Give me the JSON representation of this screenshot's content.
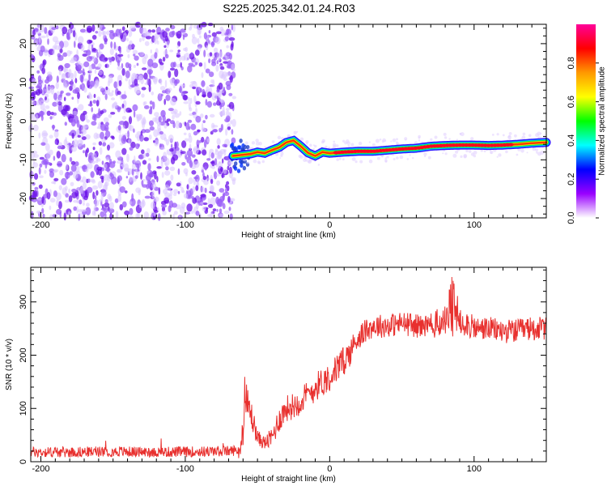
{
  "title": "S225.2025.342.01.24.R03",
  "colors": {
    "snr_line": "#e8302e",
    "spectrogram_scatter": "#7a2cf0",
    "frame": "#000000"
  },
  "chart_data": [
    {
      "type": "heatmap",
      "title": "S225.2025.342.01.24.R03",
      "xlabel": "Height of straight line (km)",
      "ylabel": "Frequency (Hz)",
      "xlim": [
        -207,
        150
      ],
      "ylim": [
        -25,
        25
      ],
      "xticks": [
        -200,
        -100,
        0,
        100
      ],
      "yticks": [
        -20,
        -10,
        0,
        10,
        20
      ],
      "colorbar": {
        "label": "Normalized spectral amplitude",
        "range": [
          0,
          1
        ],
        "ticks": [
          0.0,
          0.2,
          0.4,
          0.6,
          0.8
        ],
        "tick_labels": [
          "0.0",
          "0.2",
          "0.4",
          "0.6",
          "0.8"
        ],
        "colormap": [
          "#ffffff",
          "#9900ff",
          "#0000ff",
          "#00ffff",
          "#00ff00",
          "#ffff00",
          "#ff9900",
          "#ff0000",
          "#ff0099"
        ]
      },
      "noise_region_xmax": -66,
      "carrier_track": {
        "x": [
          -67,
          -55,
          -50,
          -45,
          -40,
          -35,
          -30,
          -25,
          -20,
          -15,
          -10,
          -5,
          0,
          10,
          20,
          30,
          40,
          50,
          60,
          70,
          80,
          90,
          100,
          110,
          120,
          130,
          140,
          150
        ],
        "y": [
          -9,
          -8.5,
          -8,
          -8.3,
          -7.5,
          -6.8,
          -5.5,
          -5,
          -6.5,
          -8.2,
          -9,
          -8,
          -8.3,
          -8,
          -7.8,
          -7.8,
          -7.5,
          -7.2,
          -7,
          -6.5,
          -6.3,
          -6.2,
          -6.2,
          -6.3,
          -6.2,
          -6.0,
          -5.7,
          -5.5
        ],
        "amplitude": [
          0.5,
          0.6,
          0.65,
          0.7,
          0.75,
          0.7,
          0.8,
          0.7,
          0.75,
          0.8,
          0.7,
          0.75,
          0.8,
          0.9,
          0.85,
          0.85,
          0.9,
          0.9,
          0.85,
          0.9,
          0.9,
          0.85,
          0.9,
          0.88,
          0.9,
          0.8,
          0.7,
          0.6
        ]
      }
    },
    {
      "type": "line",
      "xlabel": "Height of straight line (km)",
      "ylabel": "SNR (10 * v/v)",
      "xlim": [
        -207,
        150
      ],
      "ylim": [
        0,
        365
      ],
      "xticks": [
        -200,
        -100,
        0,
        100
      ],
      "yticks": [
        0,
        100,
        200,
        300
      ],
      "series": [
        {
          "x": [
            -207,
            -180,
            -150,
            -120,
            -90,
            -70,
            -62,
            -60,
            -58,
            -55,
            -50,
            -45,
            -40,
            -35,
            -30,
            -25,
            -20,
            -15,
            -10,
            -5,
            0,
            5,
            10,
            15,
            20,
            25,
            30,
            40,
            50,
            60,
            70,
            80,
            85,
            90,
            100,
            110,
            120,
            130,
            140,
            150
          ],
          "y": [
            18,
            18,
            19,
            18,
            19,
            20,
            22,
            60,
            110,
            95,
            45,
            35,
            45,
            80,
            100,
            105,
            115,
            125,
            140,
            150,
            160,
            175,
            190,
            210,
            235,
            245,
            255,
            255,
            260,
            255,
            255,
            265,
            285,
            270,
            250,
            250,
            245,
            245,
            250,
            250
          ],
          "noise_amplitude": [
            20,
            20,
            20,
            20,
            20,
            20,
            20,
            60,
            80,
            60,
            30,
            25,
            40,
            50,
            50,
            50,
            55,
            55,
            55,
            55,
            55,
            55,
            55,
            55,
            45,
            45,
            45,
            45,
            45,
            45,
            50,
            60,
            140,
            60,
            45,
            45,
            45,
            45,
            45,
            45
          ]
        }
      ]
    }
  ]
}
